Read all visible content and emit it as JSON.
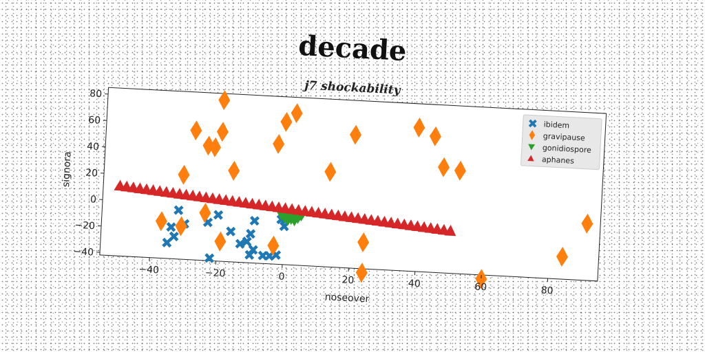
{
  "chart_data": {
    "type": "scatter",
    "title": "decade",
    "subtitle": "j7 shockability",
    "xlabel": "noseover",
    "ylabel": "signora",
    "xlim": [
      -55,
      95
    ],
    "ylim": [
      -42,
      85
    ],
    "xticks": [
      -40,
      -20,
      0,
      20,
      40,
      60,
      80
    ],
    "yticks": [
      -40,
      -20,
      0,
      20,
      40,
      60,
      80
    ],
    "grid": false,
    "legend_position": "top-right",
    "series": [
      {
        "name": "ibidem",
        "marker": "x",
        "color": "#1f77b4",
        "points": [
          [
            -32,
            -5
          ],
          [
            -34,
            -18
          ],
          [
            -33,
            -25
          ],
          [
            -35,
            -30
          ],
          [
            -30,
            -15
          ],
          [
            -23,
            -13
          ],
          [
            -20,
            -7
          ],
          [
            -22,
            -40
          ],
          [
            -16,
            -19
          ],
          [
            -9,
            -10
          ],
          [
            -10,
            -20
          ],
          [
            -11,
            -26
          ],
          [
            -13,
            -28
          ],
          [
            -9,
            -32
          ],
          [
            -10,
            -36
          ],
          [
            -6,
            -36
          ],
          [
            -4,
            -36
          ],
          [
            -2,
            -35
          ],
          [
            -1,
            -8
          ],
          [
            0,
            -13
          ]
        ]
      },
      {
        "name": "gravipause",
        "marker": "diamond",
        "color": "#ff7f0e",
        "points": [
          [
            -20,
            80
          ],
          [
            -28,
            56
          ],
          [
            -20,
            56
          ],
          [
            -24,
            45
          ],
          [
            -22,
            44
          ],
          [
            -16,
            27
          ],
          [
            -31,
            22
          ],
          [
            -3,
            49
          ],
          [
            -1,
            66
          ],
          [
            2,
            73
          ],
          [
            13,
            30
          ],
          [
            20,
            59
          ],
          [
            39,
            67
          ],
          [
            44,
            61
          ],
          [
            47,
            38
          ],
          [
            52,
            36
          ],
          [
            91,
            1
          ],
          [
            -37,
            -14
          ],
          [
            -31,
            -17
          ],
          [
            -24,
            -6
          ],
          [
            -19,
            -27
          ],
          [
            -3,
            -28
          ],
          [
            24,
            -22
          ],
          [
            24,
            -45
          ],
          [
            60,
            -45
          ],
          [
            84,
            -25
          ]
        ]
      },
      {
        "name": "gonidiospore",
        "marker": "triangle-down",
        "color": "#2ca02c",
        "points": [
          [
            -1,
            -4
          ],
          [
            0,
            -6
          ],
          [
            1,
            -5
          ],
          [
            2,
            -7
          ],
          [
            3,
            -5
          ],
          [
            4,
            -6
          ],
          [
            1,
            -8
          ],
          [
            2,
            -3
          ],
          [
            0,
            -3
          ],
          [
            3,
            -8
          ],
          [
            5,
            -4
          ]
        ]
      },
      {
        "name": "aphanes",
        "marker": "triangle-up",
        "color": "#d62728",
        "x_range": [
          -50,
          50
        ],
        "x_step": 2,
        "y_start": 11,
        "y_end": -10
      }
    ]
  }
}
